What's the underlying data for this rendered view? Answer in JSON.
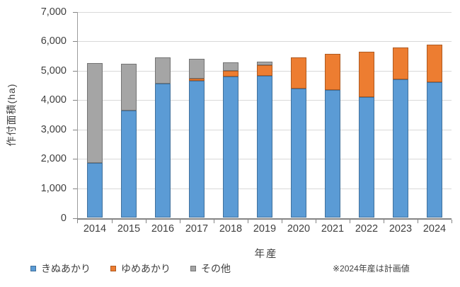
{
  "chart_data": {
    "type": "bar",
    "stacked": true,
    "title": "",
    "xlabel": "年産",
    "ylabel": "作付面積(ha)",
    "note": "※2024年産は計画値",
    "ylim": [
      0,
      7000
    ],
    "ytick_interval": 1000,
    "ytick_labels": [
      "0",
      "1,000",
      "2,000",
      "3,000",
      "4,000",
      "5,000",
      "6,000",
      "7,000"
    ],
    "grid": true,
    "legend_position": "bottom-left",
    "categories": [
      "2014",
      "2015",
      "2016",
      "2017",
      "2018",
      "2019",
      "2020",
      "2021",
      "2022",
      "2023",
      "2024"
    ],
    "series": [
      {
        "name": "きぬあかり",
        "color": "#5b9bd5",
        "border": "#41719c",
        "values": [
          1870,
          3650,
          4570,
          4650,
          4800,
          4825,
          4400,
          4340,
          4100,
          4700,
          4600
        ]
      },
      {
        "name": "ゆめあかり",
        "color": "#ed7d31",
        "border": "#ae5a21",
        "values": [
          0,
          0,
          0,
          85,
          200,
          360,
          1040,
          1220,
          1530,
          1090,
          1280
        ]
      },
      {
        "name": "その他",
        "color": "#a5a5a5",
        "border": "#747474",
        "values": [
          3390,
          1580,
          890,
          665,
          280,
          110,
          0,
          0,
          0,
          0,
          0
        ]
      }
    ],
    "totals": [
      5260,
      5230,
      5460,
      5400,
      5280,
      5295,
      5440,
      5560,
      5630,
      5790,
      5880
    ]
  }
}
